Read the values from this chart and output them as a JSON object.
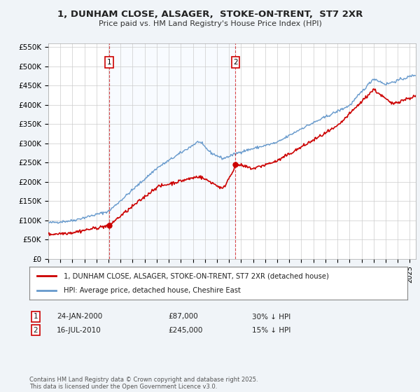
{
  "title": "1, DUNHAM CLOSE, ALSAGER,  STOKE-ON-TRENT,  ST7 2XR",
  "subtitle": "Price paid vs. HM Land Registry's House Price Index (HPI)",
  "legend_house": "1, DUNHAM CLOSE, ALSAGER, STOKE-ON-TRENT, ST7 2XR (detached house)",
  "legend_hpi": "HPI: Average price, detached house, Cheshire East",
  "footnote": "Contains HM Land Registry data © Crown copyright and database right 2025.\nThis data is licensed under the Open Government Licence v3.0.",
  "house_color": "#cc0000",
  "hpi_color": "#6699cc",
  "vline_color": "#cc0000",
  "shade_color": "#ddeeff",
  "annotation1": {
    "label": "1",
    "date": "24-JAN-2000",
    "price": "£87,000",
    "pct": "30% ↓ HPI"
  },
  "annotation2": {
    "label": "2",
    "date": "16-JUL-2010",
    "price": "£245,000",
    "pct": "15% ↓ HPI"
  },
  "sale1_x": 2000.07,
  "sale1_y": 87000,
  "sale2_x": 2010.54,
  "sale2_y": 245000,
  "ylim": [
    0,
    560000
  ],
  "xlim_start": 1995,
  "xlim_end": 2025.5,
  "yticks": [
    0,
    50000,
    100000,
    150000,
    200000,
    250000,
    300000,
    350000,
    400000,
    450000,
    500000,
    550000
  ],
  "ytick_labels": [
    "£0",
    "£50K",
    "£100K",
    "£150K",
    "£200K",
    "£250K",
    "£300K",
    "£350K",
    "£400K",
    "£450K",
    "£500K",
    "£550K"
  ],
  "background_color": "#f0f4f8",
  "plot_bg": "#ffffff",
  "grid_color": "#cccccc"
}
